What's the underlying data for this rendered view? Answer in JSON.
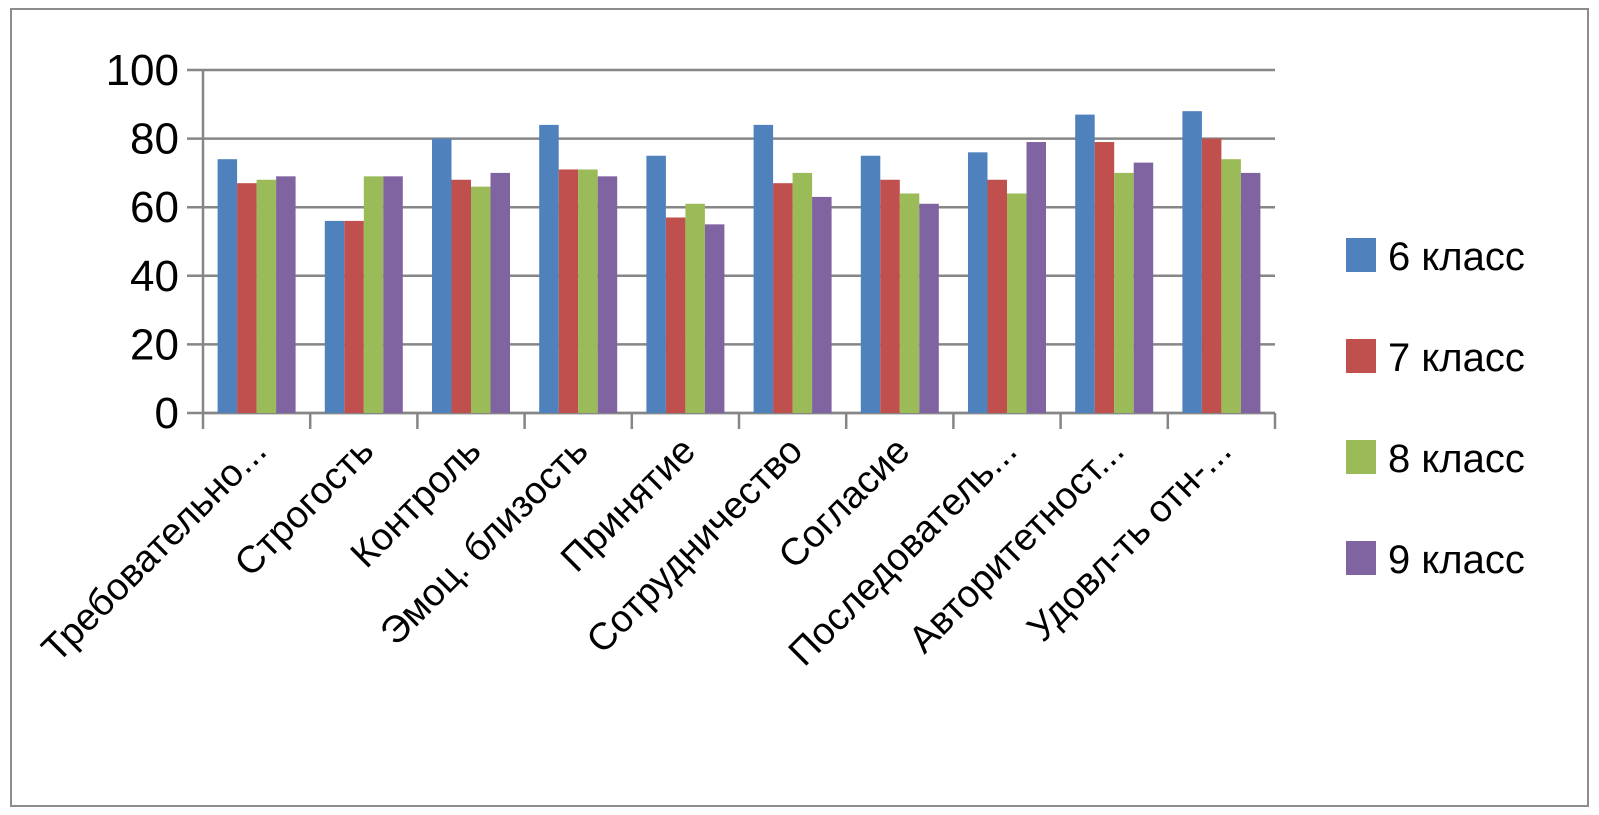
{
  "chart_data": {
    "type": "bar",
    "categories": [
      "Требовательно...",
      "Строгость",
      "Контроль",
      "Эмоц. близость",
      "Принятие",
      "Сотрудничество",
      "Согласие",
      "Последователь...",
      "Авторитетност...",
      "Удовл-ть отн-..."
    ],
    "series": [
      {
        "name": "6 класс",
        "color": "#4F81BD",
        "values": [
          74,
          56,
          80,
          84,
          75,
          84,
          75,
          76,
          87,
          88
        ]
      },
      {
        "name": "7 класс",
        "color": "#C0504D",
        "values": [
          67,
          56,
          68,
          71,
          57,
          67,
          68,
          68,
          79,
          80
        ]
      },
      {
        "name": "8 класс",
        "color": "#9BBB59",
        "values": [
          68,
          69,
          66,
          71,
          61,
          70,
          64,
          64,
          70,
          74
        ]
      },
      {
        "name": "9 класс",
        "color": "#8064A2",
        "values": [
          69,
          69,
          70,
          69,
          55,
          63,
          61,
          79,
          73,
          70
        ]
      }
    ],
    "yticks": [
      "0",
      "20",
      "40",
      "60",
      "80",
      "100"
    ],
    "ylim": [
      0,
      100
    ],
    "grid": true,
    "legend": "right",
    "title": "",
    "xlabel": "",
    "ylabel": ""
  }
}
